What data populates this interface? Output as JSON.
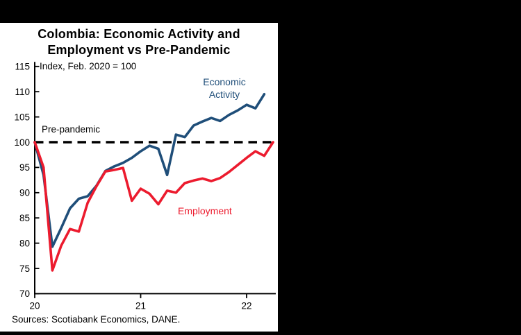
{
  "page": {
    "background_color": "#000000",
    "panel_color": "#ffffff"
  },
  "title": {
    "line1": "Colombia: Economic Activity and",
    "line2": "Employment vs Pre-Pandemic"
  },
  "subtitle": "Index, Feb. 2020 = 100",
  "source_note": "Sources: Scotiabank Economics, DANE.",
  "labels": {
    "pre_pandemic": "Pre-pandemic",
    "economic_activity_line1": "Economic",
    "economic_activity_line2": "Activity",
    "employment": "Employment"
  },
  "colors": {
    "economic_activity": "#1F4E79",
    "employment": "#EC1B2E",
    "reference_line": "#000000",
    "axis": "#000000"
  },
  "chart_data": {
    "type": "line",
    "title": "Colombia: Economic Activity and Employment vs Pre-Pandemic",
    "subtitle": "Index, Feb. 2020 = 100",
    "xlabel": "",
    "ylabel": "Index, Feb. 2020 = 100",
    "ylim": [
      70,
      115
    ],
    "y_ticks": [
      70,
      75,
      80,
      85,
      90,
      95,
      100,
      105,
      110,
      115
    ],
    "x_ticks": [
      {
        "label": "20",
        "month_index": 0
      },
      {
        "label": "21",
        "month_index": 12
      },
      {
        "label": "22",
        "month_index": 24
      }
    ],
    "grid": false,
    "legend_position": "inline-labels",
    "x": [
      "Feb-20",
      "Mar-20",
      "Apr-20",
      "May-20",
      "Jun-20",
      "Jul-20",
      "Aug-20",
      "Sep-20",
      "Oct-20",
      "Nov-20",
      "Dec-20",
      "Jan-21",
      "Feb-21",
      "Mar-21",
      "Apr-21",
      "May-21",
      "Jun-21",
      "Jul-21",
      "Aug-21",
      "Sep-21",
      "Oct-21",
      "Nov-21",
      "Dec-21",
      "Jan-22",
      "Feb-22",
      "Mar-22",
      "Apr-22",
      "May-22"
    ],
    "reference_line": {
      "label": "Pre-pandemic",
      "value": 100,
      "style": "dashed",
      "color": "#000000"
    },
    "series": [
      {
        "name": "Economic Activity",
        "color": "#1F4E79",
        "values": [
          100,
          93.5,
          79.3,
          83.0,
          86.9,
          88.8,
          89.3,
          91.4,
          94.3,
          95.2,
          95.9,
          96.9,
          98.2,
          99.3,
          98.7,
          93.5,
          101.5,
          101.0,
          103.3,
          104.1,
          104.8,
          104.2,
          105.4,
          106.3,
          107.4,
          106.7,
          109.5
        ]
      },
      {
        "name": "Employment",
        "color": "#EC1B2E",
        "values": [
          100,
          95.0,
          74.6,
          79.5,
          82.8,
          82.3,
          88.0,
          91.3,
          94.2,
          94.5,
          94.9,
          88.4,
          90.8,
          89.8,
          87.7,
          90.4,
          90.0,
          91.9,
          92.4,
          92.8,
          92.3,
          92.9,
          94.1,
          95.5,
          96.9,
          98.2,
          97.3,
          100.0
        ]
      }
    ]
  }
}
